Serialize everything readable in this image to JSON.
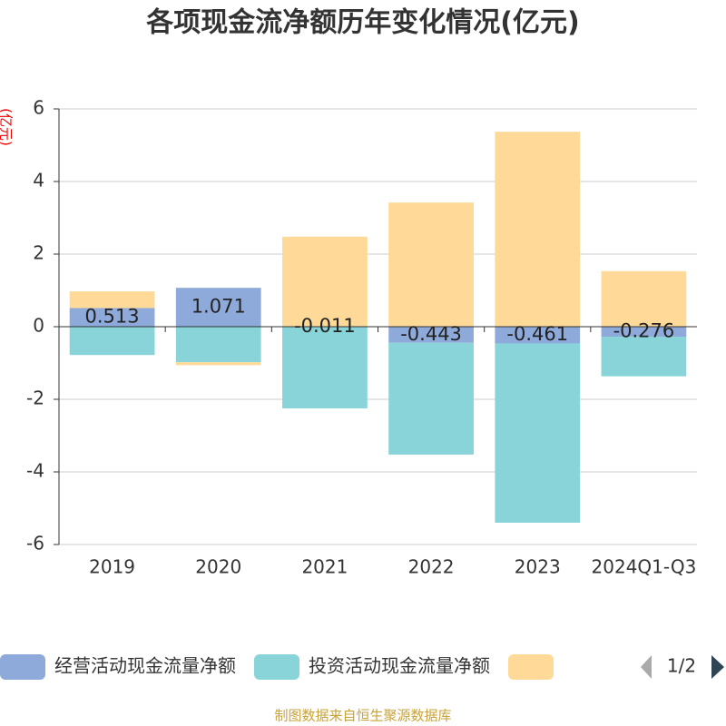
{
  "chart_data": {
    "type": "stacked_bar",
    "title": "各项现金流净额历年变化情况(亿元)",
    "y_label": "(亿元)",
    "categories": [
      "2019",
      "2020",
      "2021",
      "2022",
      "2023",
      "2024Q1-Q3"
    ],
    "series": [
      {
        "name": "经营活动现金流量净额",
        "color": "#8eaadb",
        "values": [
          0.513,
          1.071,
          -0.011,
          -0.443,
          -0.461,
          -0.276
        ],
        "labels": true
      },
      {
        "name": "投资活动现金流量净额",
        "color": "#88d4d8",
        "values": [
          -0.78,
          -0.98,
          -2.24,
          -3.08,
          -4.94,
          -1.09
        ]
      },
      {
        "name": null,
        "color": "#ffd998",
        "values": [
          0.46,
          -0.08,
          2.48,
          3.42,
          5.37,
          1.53
        ]
      }
    ],
    "ylim": [
      -6,
      6
    ],
    "yticks": [
      -6,
      -4,
      -2,
      0,
      2,
      4,
      6
    ],
    "grid": true,
    "legend_page": "1/2",
    "source": "制图数据来自恒生聚源数据库"
  }
}
